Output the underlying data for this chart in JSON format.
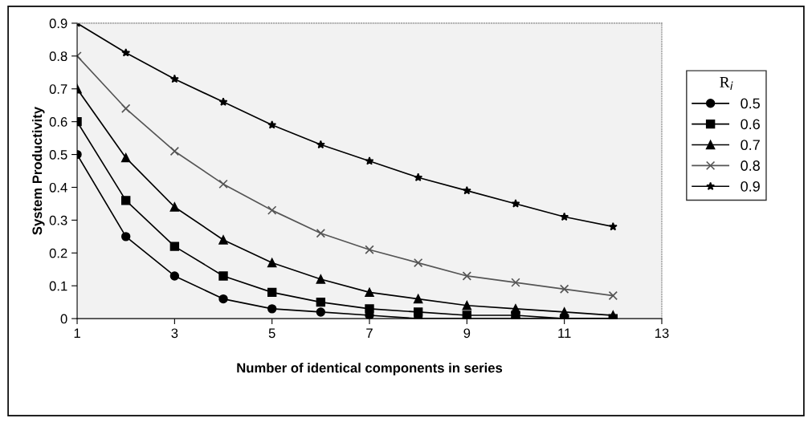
{
  "chart_data": {
    "type": "line",
    "xlabel": "Number of identical components in series",
    "ylabel": "System Productivity",
    "legend_title": "R$_{i}$",
    "x": [
      1,
      2,
      3,
      4,
      5,
      6,
      7,
      8,
      9,
      10,
      11,
      12
    ],
    "series": [
      {
        "name": "0.5",
        "color": "#000000",
        "marker": "circle",
        "values": [
          0.5,
          0.25,
          0.13,
          0.06,
          0.03,
          0.02,
          0.01,
          0.0,
          0.0,
          0.0,
          0.0,
          0.0
        ]
      },
      {
        "name": "0.6",
        "color": "#000000",
        "marker": "square",
        "values": [
          0.6,
          0.36,
          0.22,
          0.13,
          0.08,
          0.05,
          0.03,
          0.02,
          0.01,
          0.01,
          0.0,
          0.0
        ]
      },
      {
        "name": "0.7",
        "color": "#000000",
        "marker": "triangle",
        "values": [
          0.7,
          0.49,
          0.34,
          0.24,
          0.17,
          0.12,
          0.08,
          0.06,
          0.04,
          0.03,
          0.02,
          0.01
        ]
      },
      {
        "name": "0.8",
        "color": "#555555",
        "marker": "cross",
        "values": [
          0.8,
          0.64,
          0.51,
          0.41,
          0.33,
          0.26,
          0.21,
          0.17,
          0.13,
          0.11,
          0.09,
          0.07
        ]
      },
      {
        "name": "0.9",
        "color": "#000000",
        "marker": "star",
        "values": [
          0.9,
          0.81,
          0.73,
          0.66,
          0.59,
          0.53,
          0.48,
          0.43,
          0.39,
          0.35,
          0.31,
          0.28
        ]
      }
    ],
    "xlim": [
      1,
      13
    ],
    "xticks": [
      1,
      3,
      5,
      7,
      9,
      11,
      13
    ],
    "ylim": [
      0,
      0.9
    ],
    "yticks": [
      0,
      0.1,
      0.2,
      0.3,
      0.4,
      0.5,
      0.6,
      0.7,
      0.8,
      0.9
    ],
    "legend": "right",
    "line_style": "solid"
  }
}
